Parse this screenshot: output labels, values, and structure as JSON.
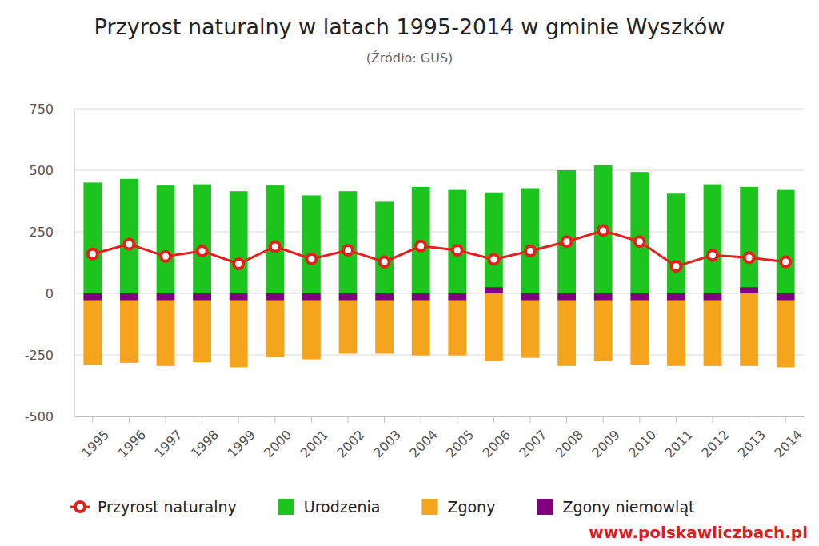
{
  "chart_data": {
    "type": "bar",
    "title": "Przyrost naturalny w latach 1995-2014 w gminie Wyszków",
    "subtitle": "(Źródło: GUS)",
    "annotations": [
      "www.polskawliczbach.pl"
    ],
    "categories": [
      "1995",
      "1996",
      "1997",
      "1998",
      "1999",
      "2000",
      "2001",
      "2002",
      "2003",
      "2004",
      "2005",
      "2006",
      "2007",
      "2008",
      "2009",
      "2010",
      "2011",
      "2012",
      "2013",
      "2014"
    ],
    "series": [
      {
        "name": "Przyrost naturalny",
        "type": "line",
        "marker": "circle",
        "color": "#e3201b",
        "values": [
          160,
          200,
          150,
          172,
          120,
          190,
          140,
          175,
          128,
          192,
          175,
          138,
          172,
          210,
          255,
          210,
          110,
          155,
          145,
          128
        ]
      },
      {
        "name": "Urodzenia",
        "type": "bar",
        "color": "#1ec41e",
        "values": [
          450,
          465,
          438,
          443,
          415,
          438,
          398,
          415,
          372,
          432,
          420,
          410,
          427,
          500,
          520,
          493,
          405,
          443,
          432,
          420
        ]
      },
      {
        "name": "Zgony",
        "type": "bar",
        "color": "#f5a41e",
        "values": [
          -262,
          -254,
          -267,
          -252,
          -272,
          -230,
          -240,
          -217,
          -217,
          -224,
          -224,
          -275,
          -234,
          -267,
          -247,
          -262,
          -267,
          -267,
          -295,
          -272
        ]
      },
      {
        "name": "Zgony niemowląt",
        "type": "bar",
        "color": "#800080",
        "values": [
          -28,
          -28,
          -28,
          -28,
          -28,
          -28,
          -28,
          -28,
          -28,
          -28,
          -28,
          25,
          -28,
          -28,
          -28,
          -28,
          -28,
          -28,
          25,
          -28
        ]
      }
    ],
    "stacked": true,
    "ylim": [
      -500,
      750
    ],
    "yticks": [
      -500,
      -250,
      0,
      250,
      500,
      750
    ],
    "grid": true,
    "legend": "bottom"
  }
}
